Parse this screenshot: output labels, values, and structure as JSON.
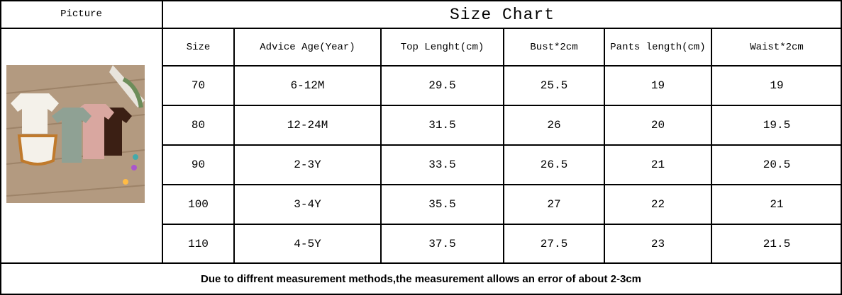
{
  "header": {
    "picture_label": "Picture",
    "title": "Size Chart"
  },
  "table": {
    "columns": [
      "Size",
      "Advice Age(Year)",
      "Top Lenght(cm)",
      "Bust*2cm",
      "Pants length(cm)",
      "Waist*2cm"
    ],
    "rows": [
      [
        "70",
        "6-12M",
        "29.5",
        "25.5",
        "19",
        "19"
      ],
      [
        "80",
        "12-24M",
        "31.5",
        "26",
        "20",
        "19.5"
      ],
      [
        "90",
        "2-3Y",
        "33.5",
        "26.5",
        "21",
        "20.5"
      ],
      [
        "100",
        "3-4Y",
        "35.5",
        "27",
        "22",
        "21"
      ],
      [
        "110",
        "4-5Y",
        "37.5",
        "27.5",
        "23",
        "21.5"
      ]
    ]
  },
  "footer": {
    "note": "Due to diffrent measurement methods,the measurement allows an error of about 2-3cm"
  }
}
